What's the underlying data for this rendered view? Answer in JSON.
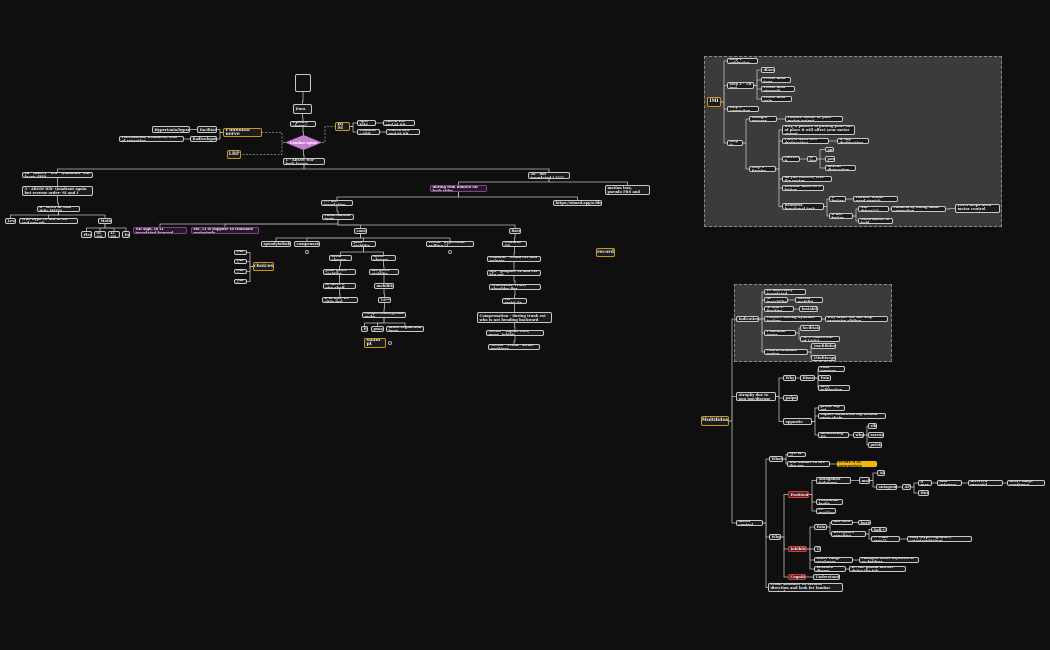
{
  "colors": {
    "background": "#0f0f0f",
    "node_border": "#c8c8c8",
    "orange": "#c9961d",
    "purple": "#8a3d8f",
    "red": "#d23b3b",
    "yellow": "#f2b705",
    "diamond": "#c87dd4",
    "panel": "#3b3b3b"
  },
  "nodes": {
    "empty": "",
    "dura": "Dura",
    "opened": "Opened closer?",
    "lumbar": "Lumbar spine",
    "bisi": "Bi SI",
    "spri": "Spri - FHS",
    "confsbb": "Confirm - SBB",
    "checkext": "check Ext and SI SB",
    "checkflex": "Check flex and SI SB",
    "arom1": "1 - AROM WB- both facets",
    "pud": "Pudendal nerve",
    "hyper": "Hypertonia/hypertonic",
    "facil": "Facilitated",
    "pares": "Paresthesia, weakness, loss of sensation",
    "radic": "Radiculopathy",
    "lbp": "LBP",
    "a2a": "2a - AROM - WB - Quadrant- one facet- FHD",
    "a3": "3 - AROM WB- Quadrant again but reverse order- SI and I",
    "a4": "4 - ROM in Non WB- FHYM",
    "level": "Level",
    "truehypo": "True hypo-to-diff in wb and non wb",
    "motions": "Motions",
    "flex": "Flex",
    "sisb": "SI SB",
    "lisb": "LI SB",
    "ext": "Ext",
    "nbsign": "NB sign, in LI translated forward",
    "extli": "ext, LI is suppose to translate posteriorly",
    "a2b": "2b - not translated L3???",
    "during": "during rom limited SB both sides",
    "thiswill": "this will cause all motion loss, pseudo FRS and ERS",
    "transl": "??? are translation",
    "https": "https://ximed.app/e/8bc0c",
    "confirm": "confirmation tests",
    "causes": "causes",
    "fixes": "fixes",
    "spondy": "spondylolisthesis",
    "comp": "compensation",
    "poorstab": "poor stability",
    "vector": "vector- hypertonic pulling LI",
    "confsb": "Confirm - SB",
    "choices": "choices",
    "ckA": "Ckt A",
    "ckB": "Ckt B",
    "ckC": "Ckt C",
    "ckD": "Ckt D",
    "record": "record",
    "form": "form closure",
    "force": "force closure",
    "joint": "joint gives stability",
    "mugives": "mu gives stability",
    "vice": "is there a vice shelf",
    "mobil": "mobilities",
    "ups": "if in ups, LS slide fwd",
    "ta": "TA****",
    "compr": "compression/global mobs",
    "es": "ES",
    "psoas": "psoas",
    "multi": "multi segmental hypo",
    "shani": "shani pt",
    "f1": "Confirm - trunk ext and palpate",
    "f2": "Apt- (palpate SI and ext hip out",
    "f3": "Multifidus: resist shoulder flex",
    "f4": "TA - resist Ex",
    "f5": "Compensation - during trunk ext who is not bending backward",
    "f6": "Vector - supine ERS, move, inhibit",
    "f7": "Vector - Prone- stride positions",
    "imi": "IMI",
    "s1": "step 1 - subjective",
    "s2": "step 2 - TB test",
    "s3": "step 3 - correction",
    "s4": "step 4-",
    "dil": "dilator",
    "pft": "Pelvic floor tone",
    "pfs": "Pelvic floor strength",
    "pfp": "Pelvic floor pain",
    "tp": "thought process",
    "pt": "Passive tissue or poor motor output",
    "sp": "Step 1- Passive",
    "why1": "why, if passive is pulling joint out of place it will affect your motor output",
    "prom": "PROM until feel dysfunction",
    "iehip": "ie hip dysfunction",
    "corr": "correct it",
    "iehip2": "ie hip",
    "ant": "ant",
    "post": "post",
    "lat": "lateral distraction",
    "asyou": "As you correct, feel the vector",
    "rel": "Release until 30% better",
    "reas": "Reassess functional task",
    "ifb": "if better",
    "passt": "Passive tissue- need stretch",
    "ifnb": "if not better",
    "notd": "Not driver???",
    "confby": "confirm by doing same correction",
    "yes": "yes it helps need motor control assessment",
    "need": "Need motor to hold",
    "mf": "Multifidus",
    "ind": "Indications",
    "l5": "L5 anteriorly translated",
    "sii": "SI instability",
    "sac": "Sacral mobiliti",
    "sil": "SI and L Positive",
    "inst": "Instability",
    "clos": "Closure during dynamic testing",
    "whyd": "why didnt the mu stop excessive sliding",
    "pudn": "Pudendal nerve",
    "fac2": "facilitated",
    "p30": "30% comes out of LS/S4",
    "thor": "Thoracolumbar region",
    "tmul": "(multifidus)",
    "tmseg": "(Multisegment)",
    "atro": "Atrophy due to non use/disease",
    "why2": "Why",
    "dis": "Disuse",
    "postsurg": "Post surgery",
    "pain": "Pain",
    "fatty": "fatty infiltration",
    "palp": "palpate",
    "test": "test opposite mu",
    "prone": "prone hip ext",
    "supine": "supine unilateral hip flexion open chain",
    "mon": "monitoring ES",
    "why3": "why",
    "rib": "rib",
    "sacr": "sacrum",
    "pel": "pelvis",
    "mc": "motor control",
    "what": "What",
    "mufine": "MU is Fine",
    "unable": "But unable to fire the mu",
    "refire": "re-fire it as appropriate",
    "whyq": "Why?",
    "pos": "Positioning",
    "ant2": "Antagonist tightness",
    "mult": "mult",
    "ap1": "AP",
    "antag": "antagonist",
    "ap2": "AP",
    "gmax": "g max",
    "hnt": "Hnt",
    "lom": "lom grippers",
    "inv": "inverted pyramid",
    "heart": "heart shape syndrome",
    "pf": "Positional faults",
    "fi": "FI position",
    "inh": "Inhibition",
    "pain2": "Pain",
    "muton": "mu turn on",
    "hurts": "hurts",
    "recep": "Receptors sensitive",
    "soft": "Soft+??",
    "pa": "?? Pain area??",
    "subj": "subj (hypervigilance, catastrophizing)",
    "tp2": "TP",
    "inner": "Inner range weakness",
    "chg": "changed order myositis or no bridges",
    "learned": "Learned disuse",
    "ie": "Ie: the global mu are doing the job",
    "cog": "Cognitive",
    "und": "Understanding",
    "resist": "resist shoulder in various direction and look for lumbar control"
  }
}
